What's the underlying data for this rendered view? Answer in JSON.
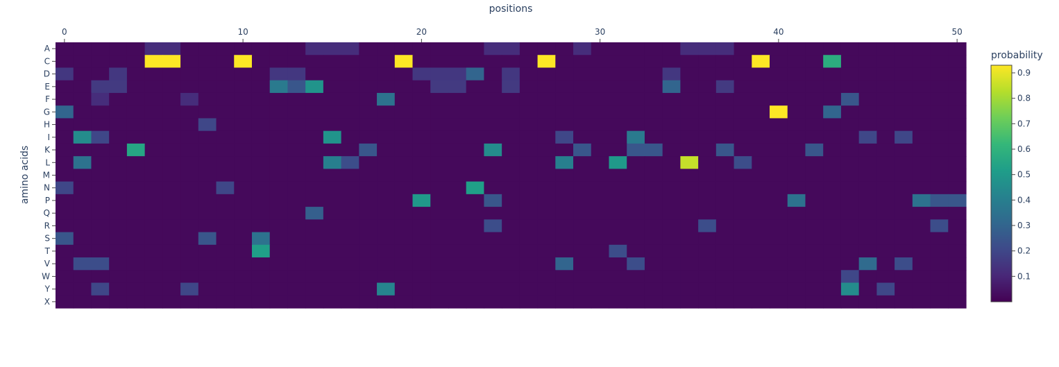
{
  "chart_data": {
    "type": "heatmap",
    "title": "",
    "xlabel": "positions",
    "ylabel": "amino acids",
    "x_ticks": [
      0,
      10,
      20,
      30,
      40,
      50
    ],
    "x_tick_labels": [
      "0",
      "10",
      "20",
      "30",
      "40",
      "50"
    ],
    "xlim": [
      -0.5,
      50.5
    ],
    "y_categories": [
      "A",
      "C",
      "D",
      "E",
      "F",
      "G",
      "H",
      "I",
      "K",
      "L",
      "M",
      "N",
      "P",
      "Q",
      "R",
      "S",
      "T",
      "V",
      "W",
      "Y",
      "X"
    ],
    "colorbar": {
      "title": "probability",
      "range": [
        0.0,
        0.93
      ],
      "ticks": [
        0.1,
        0.2,
        0.3,
        0.4,
        0.5,
        0.6,
        0.7,
        0.8,
        0.9
      ],
      "tick_labels": [
        "0.1",
        "0.2",
        "0.3",
        "0.4",
        "0.5",
        "0.6",
        "0.7",
        "0.8",
        "0.9"
      ],
      "colorscale": [
        "#440154",
        "#482878",
        "#3e4989",
        "#31688e",
        "#26828e",
        "#1f9e89",
        "#35b779",
        "#6ece58",
        "#b5de2b",
        "#fde725"
      ]
    },
    "background_value": 0.02,
    "values": [
      {
        "aa": "A",
        "pos": [
          5,
          6,
          14,
          15,
          16,
          24,
          25,
          29,
          35,
          36,
          37
        ],
        "v": 0.12
      },
      {
        "aa": "C",
        "pos": [
          5,
          6,
          10,
          19,
          27,
          39
        ],
        "v": 0.93
      },
      {
        "aa": "C",
        "pos": [
          43
        ],
        "v": 0.58
      },
      {
        "aa": "D",
        "pos": [
          0,
          3,
          12,
          13,
          20,
          21,
          22,
          25,
          34
        ],
        "v": 0.15
      },
      {
        "aa": "D",
        "pos": [
          23
        ],
        "v": 0.3
      },
      {
        "aa": "E",
        "pos": [
          12
        ],
        "v": 0.38
      },
      {
        "aa": "E",
        "pos": [
          13
        ],
        "v": 0.25
      },
      {
        "aa": "E",
        "pos": [
          14
        ],
        "v": 0.48
      },
      {
        "aa": "E",
        "pos": [
          34
        ],
        "v": 0.3
      },
      {
        "aa": "E",
        "pos": [
          2,
          3,
          21,
          22,
          25,
          37
        ],
        "v": 0.16
      },
      {
        "aa": "F",
        "pos": [
          18
        ],
        "v": 0.35
      },
      {
        "aa": "F",
        "pos": [
          44
        ],
        "v": 0.25
      },
      {
        "aa": "F",
        "pos": [
          2,
          7
        ],
        "v": 0.12
      },
      {
        "aa": "G",
        "pos": [
          0
        ],
        "v": 0.3
      },
      {
        "aa": "G",
        "pos": [
          40
        ],
        "v": 0.93
      },
      {
        "aa": "G",
        "pos": [
          43
        ],
        "v": 0.3
      },
      {
        "aa": "H",
        "pos": [
          8
        ],
        "v": 0.2
      },
      {
        "aa": "I",
        "pos": [
          1
        ],
        "v": 0.45
      },
      {
        "aa": "I",
        "pos": [
          15
        ],
        "v": 0.48
      },
      {
        "aa": "I",
        "pos": [
          32
        ],
        "v": 0.38
      },
      {
        "aa": "I",
        "pos": [
          2,
          28,
          45,
          47
        ],
        "v": 0.2
      },
      {
        "aa": "K",
        "pos": [
          4
        ],
        "v": 0.55
      },
      {
        "aa": "K",
        "pos": [
          24
        ],
        "v": 0.45
      },
      {
        "aa": "K",
        "pos": [
          17,
          29,
          32,
          33,
          37,
          42
        ],
        "v": 0.25
      },
      {
        "aa": "L",
        "pos": [
          1
        ],
        "v": 0.35
      },
      {
        "aa": "L",
        "pos": [
          15
        ],
        "v": 0.4
      },
      {
        "aa": "L",
        "pos": [
          28
        ],
        "v": 0.4
      },
      {
        "aa": "L",
        "pos": [
          31
        ],
        "v": 0.5
      },
      {
        "aa": "L",
        "pos": [
          35
        ],
        "v": 0.85
      },
      {
        "aa": "L",
        "pos": [
          16,
          38
        ],
        "v": 0.22
      },
      {
        "aa": "N",
        "pos": [
          23
        ],
        "v": 0.52
      },
      {
        "aa": "N",
        "pos": [
          0,
          9
        ],
        "v": 0.2
      },
      {
        "aa": "P",
        "pos": [
          20
        ],
        "v": 0.5
      },
      {
        "aa": "P",
        "pos": [
          41
        ],
        "v": 0.35
      },
      {
        "aa": "P",
        "pos": [
          48
        ],
        "v": 0.35
      },
      {
        "aa": "P",
        "pos": [
          49,
          50,
          24
        ],
        "v": 0.25
      },
      {
        "aa": "Q",
        "pos": [
          14
        ],
        "v": 0.28
      },
      {
        "aa": "R",
        "pos": [
          24,
          36,
          49
        ],
        "v": 0.22
      },
      {
        "aa": "S",
        "pos": [
          11
        ],
        "v": 0.35
      },
      {
        "aa": "S",
        "pos": [
          0,
          8
        ],
        "v": 0.25
      },
      {
        "aa": "T",
        "pos": [
          11
        ],
        "v": 0.52
      },
      {
        "aa": "T",
        "pos": [
          31
        ],
        "v": 0.22
      },
      {
        "aa": "V",
        "pos": [
          28
        ],
        "v": 0.3
      },
      {
        "aa": "V",
        "pos": [
          45
        ],
        "v": 0.32
      },
      {
        "aa": "V",
        "pos": [
          1,
          2,
          32,
          47
        ],
        "v": 0.22
      },
      {
        "aa": "W",
        "pos": [
          44
        ],
        "v": 0.2
      },
      {
        "aa": "Y",
        "pos": [
          18
        ],
        "v": 0.42
      },
      {
        "aa": "Y",
        "pos": [
          44
        ],
        "v": 0.45
      },
      {
        "aa": "Y",
        "pos": [
          2,
          7,
          46
        ],
        "v": 0.2
      }
    ]
  }
}
